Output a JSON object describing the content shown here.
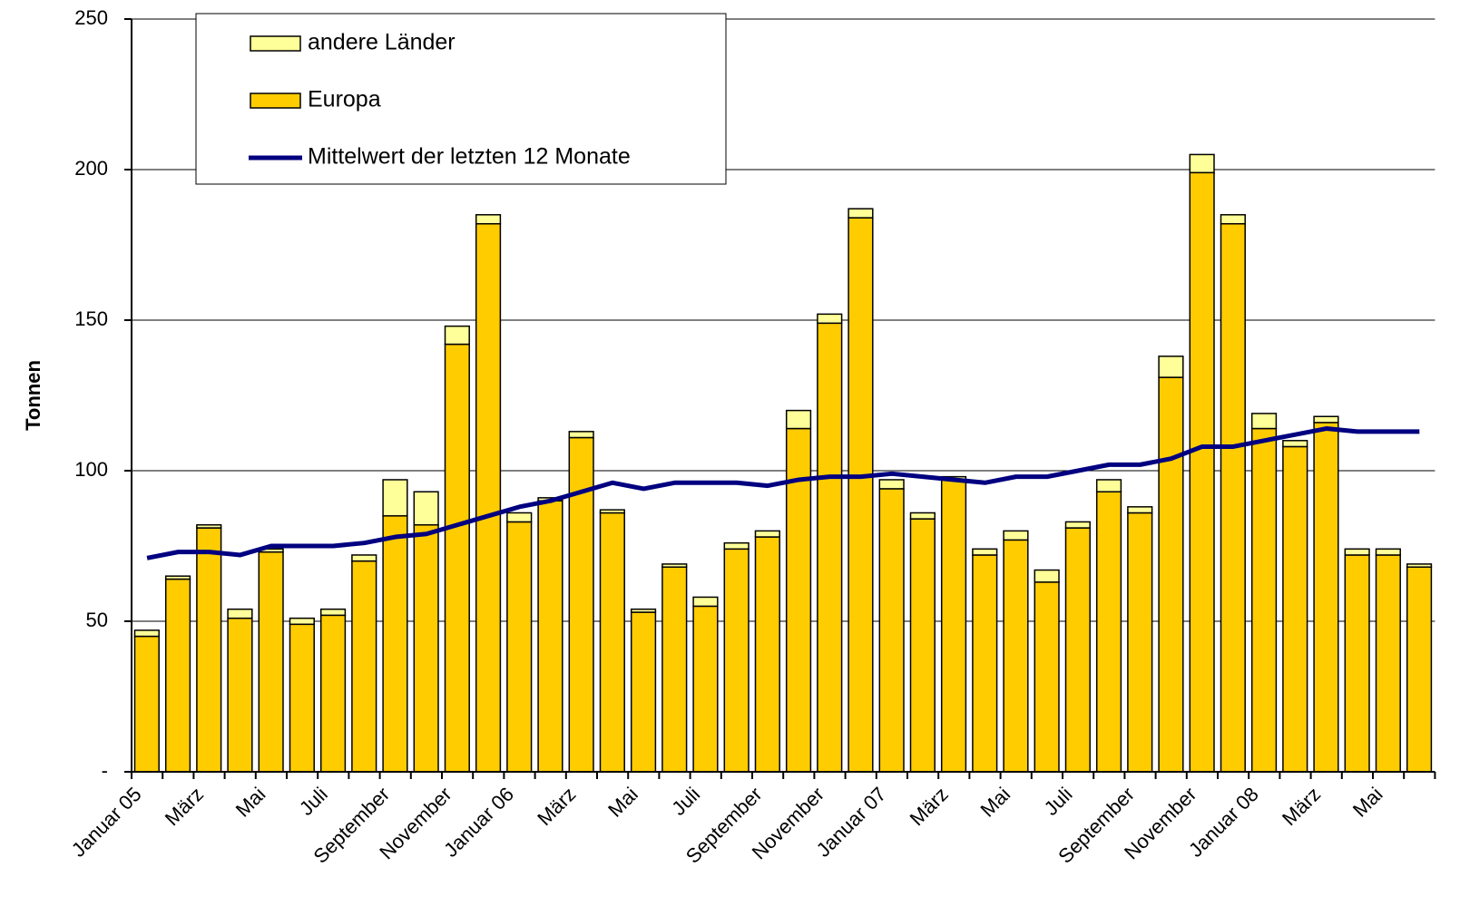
{
  "chart_data": {
    "type": "bar",
    "stacked": true,
    "y_label": "Tonnen",
    "categories": [
      "Januar 05",
      null,
      "März",
      null,
      "Mai",
      null,
      "Juli",
      null,
      "September",
      null,
      "November",
      null,
      "Januar 06",
      null,
      "März",
      null,
      "Mai",
      null,
      "Juli",
      null,
      "September",
      null,
      "November",
      null,
      "Januar 07",
      null,
      "März",
      null,
      "Mai",
      null,
      "Juli",
      null,
      "September",
      null,
      "November",
      null,
      "Januar 08",
      null,
      "März",
      null,
      "Mai",
      null
    ],
    "series": [
      {
        "name": "Europa",
        "type": "bar",
        "color": "#ffcc00",
        "values": [
          45,
          64,
          81,
          51,
          73,
          49,
          52,
          70,
          85,
          82,
          142,
          182,
          83,
          90,
          111,
          86,
          53,
          68,
          55,
          74,
          78,
          114,
          149,
          184,
          94,
          84,
          97,
          72,
          77,
          63,
          81,
          93,
          86,
          131,
          199,
          182,
          114,
          108,
          116,
          72,
          72,
          68
        ]
      },
      {
        "name": "andere Länder",
        "type": "bar",
        "color": "#ffff99",
        "values": [
          2,
          1,
          1,
          3,
          1,
          2,
          2,
          2,
          12,
          11,
          6,
          3,
          3,
          1,
          2,
          1,
          1,
          1,
          3,
          2,
          2,
          6,
          3,
          3,
          3,
          2,
          1,
          2,
          3,
          4,
          2,
          4,
          2,
          7,
          6,
          3,
          5,
          2,
          2,
          2,
          2,
          1
        ]
      },
      {
        "name": "Mittelwert der letzten 12 Monate",
        "type": "line",
        "color": "#000080",
        "values": [
          71,
          73,
          73,
          72,
          75,
          75,
          75,
          76,
          78,
          79,
          82,
          85,
          88,
          90,
          93,
          96,
          94,
          96,
          96,
          96,
          95,
          97,
          98,
          98,
          99,
          98,
          97,
          96,
          98,
          98,
          100,
          102,
          102,
          104,
          108,
          108,
          110,
          112,
          114,
          113,
          113,
          113
        ]
      }
    ],
    "ylim": [
      0,
      250
    ],
    "yticks": [
      {
        "value": 0,
        "label": "-"
      },
      50,
      100,
      150,
      200,
      250
    ],
    "grid": true
  }
}
